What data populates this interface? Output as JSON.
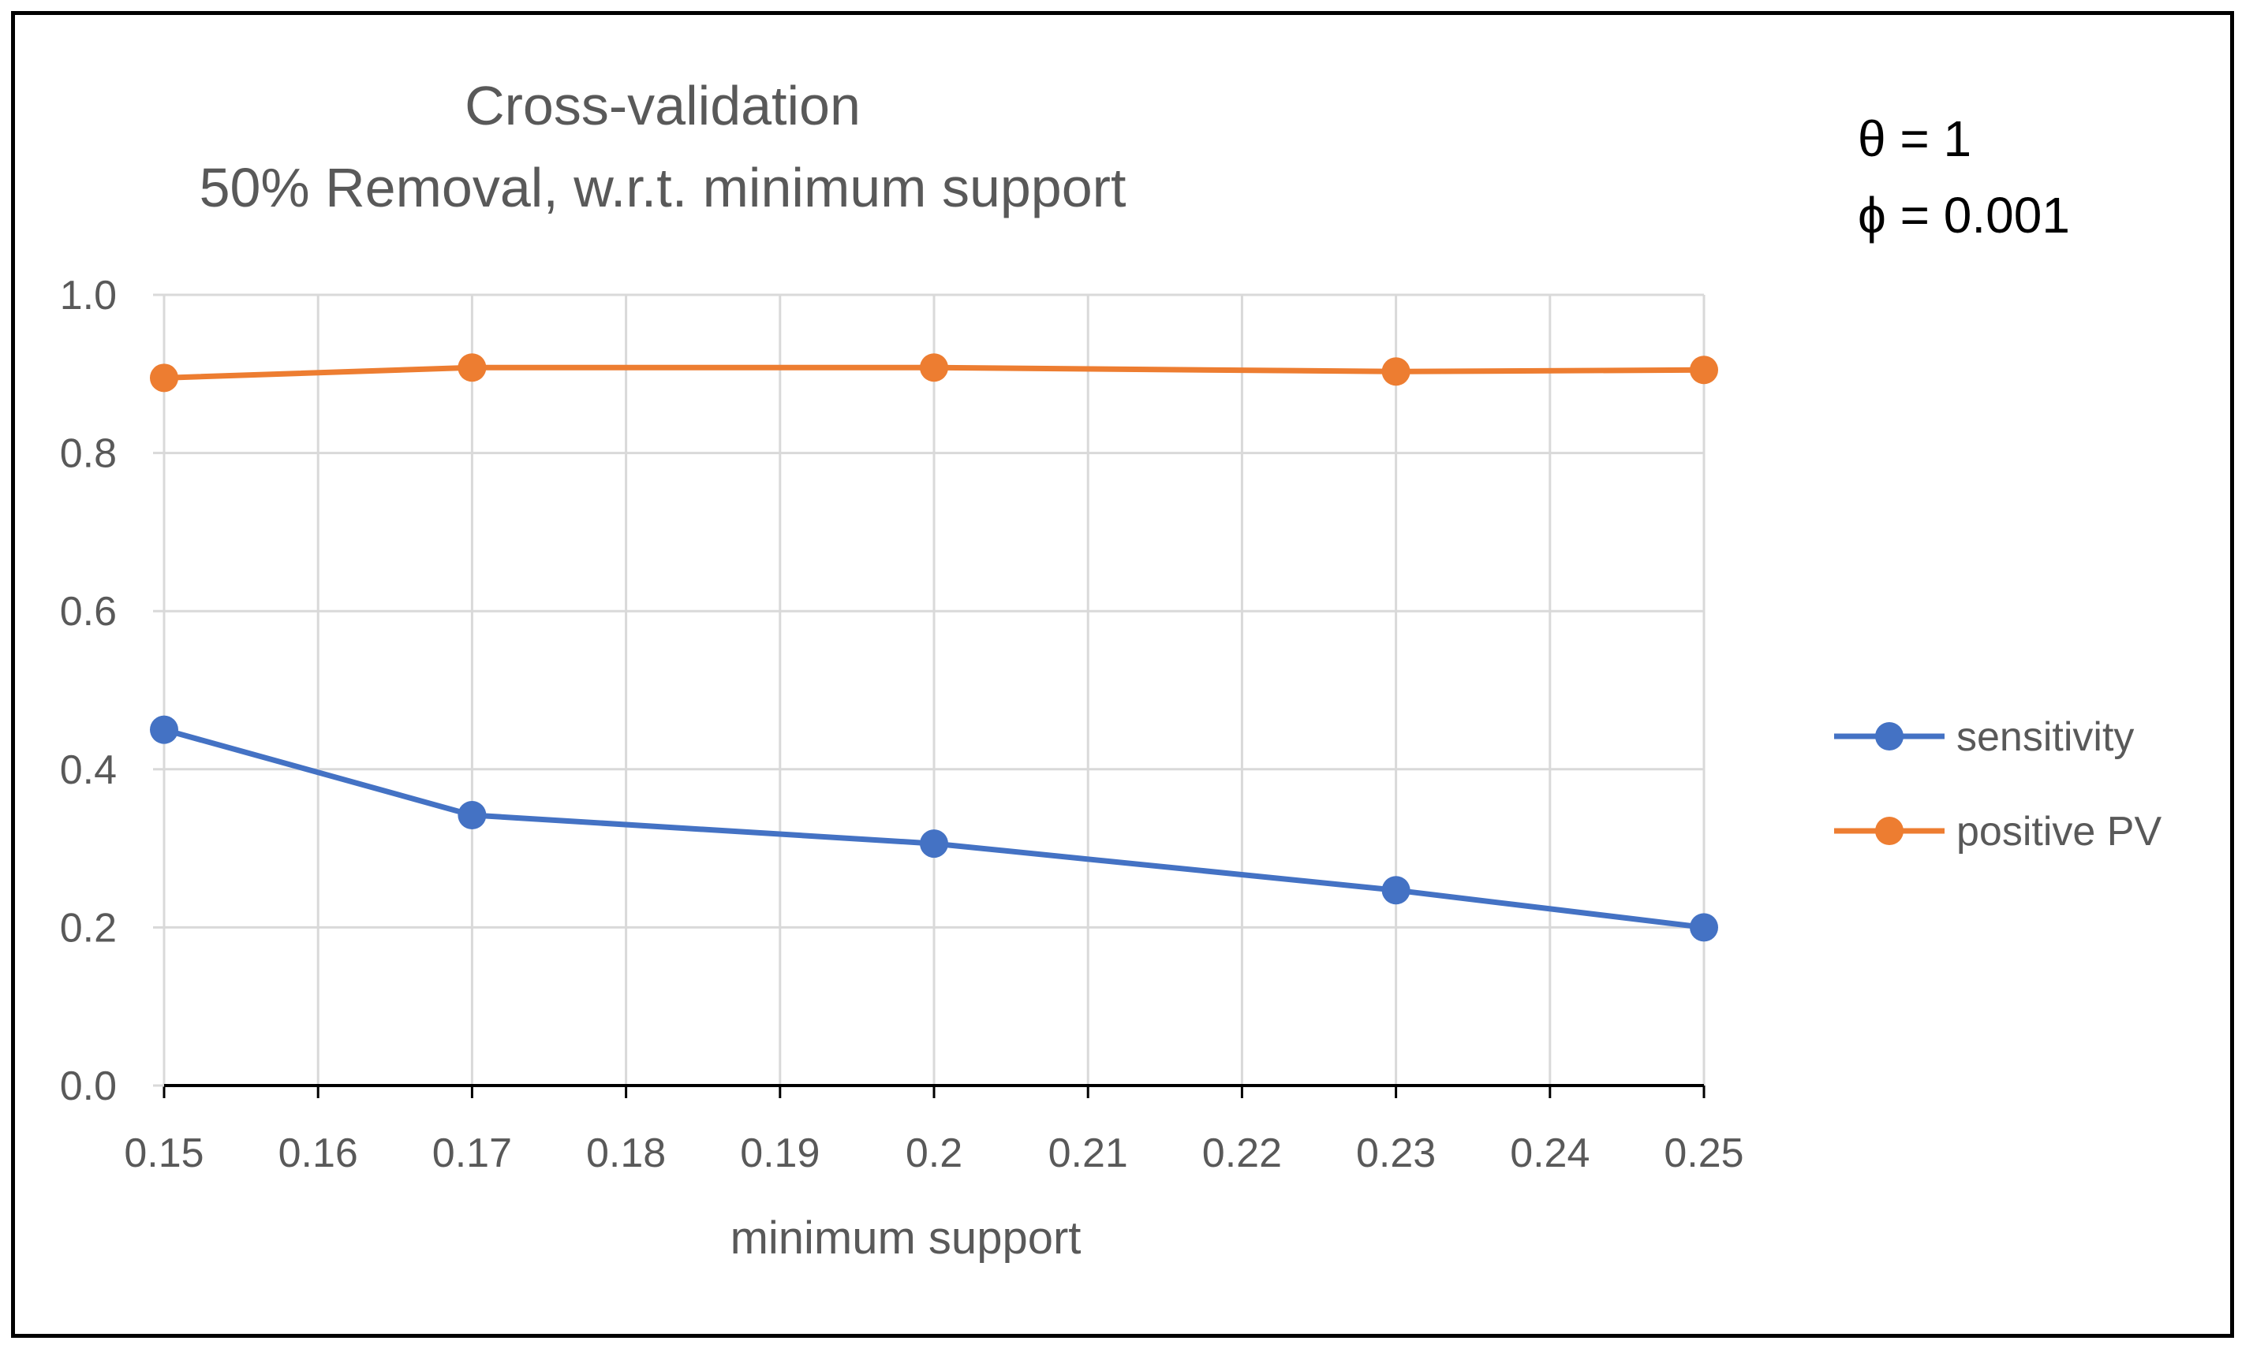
{
  "chart_data": {
    "type": "line",
    "title": [
      "Cross-validation",
      "50% Removal, w.r.t. minimum support"
    ],
    "xlabel": "minimum support",
    "ylabel": "",
    "xlim": [
      0.15,
      0.25
    ],
    "ylim": [
      0,
      1.0
    ],
    "xticks": [
      "0.15",
      "0.16",
      "0.17",
      "0.18",
      "0.19",
      "0.2",
      "0.21",
      "0.22",
      "0.23",
      "0.24",
      "0.25"
    ],
    "yticks": [
      "0.0",
      "0.2",
      "0.4",
      "0.6",
      "0.8",
      "1.0"
    ],
    "grid": true,
    "legend_position": "right",
    "annotations": [
      "θ = 1",
      "ϕ = 0.001"
    ],
    "series": [
      {
        "name": "sensitivity",
        "color": "#4472C4",
        "x": [
          0.15,
          0.17,
          0.2,
          0.23,
          0.25
        ],
        "y": [
          0.45,
          0.342,
          0.306,
          0.247,
          0.2
        ]
      },
      {
        "name": "positive PV",
        "color": "#ED7D31",
        "x": [
          0.15,
          0.17,
          0.2,
          0.23,
          0.25
        ],
        "y": [
          0.895,
          0.908,
          0.908,
          0.903,
          0.905
        ]
      }
    ]
  }
}
